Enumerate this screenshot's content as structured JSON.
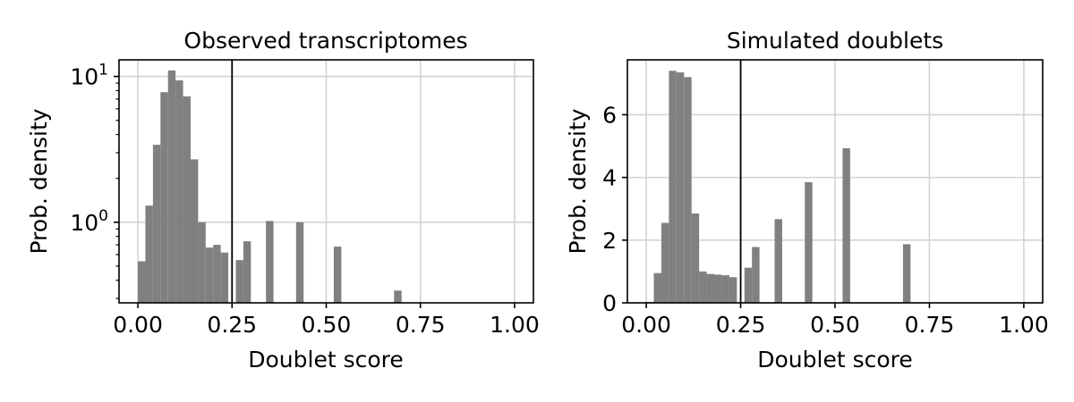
{
  "chart_data": [
    {
      "type": "bar",
      "title": "Observed transcriptomes",
      "xlabel": "Doublet score",
      "ylabel": "Prob. density",
      "xlim": [
        -0.05,
        1.05
      ],
      "yscale": "log",
      "ylim": [
        0.28,
        13
      ],
      "grid": true,
      "bar_color": "#808080",
      "threshold": 0.25,
      "xticks": [
        0.0,
        0.25,
        0.5,
        0.75,
        1.0
      ],
      "xtick_labels": [
        "0.00",
        "0.25",
        "0.50",
        "0.75",
        "1.00"
      ],
      "yticks": [
        {
          "value": 1,
          "base": "10",
          "exp": "0"
        },
        {
          "value": 10,
          "base": "10",
          "exp": "1"
        }
      ],
      "bin_width": 0.02,
      "bins_left": [
        0.0,
        0.02,
        0.04,
        0.06,
        0.08,
        0.1,
        0.12,
        0.14,
        0.16,
        0.18,
        0.2,
        0.22,
        0.26,
        0.28,
        0.34,
        0.42,
        0.52,
        0.68
      ],
      "values": [
        0.54,
        1.3,
        3.4,
        7.8,
        11.0,
        9.4,
        7.3,
        2.7,
        1.0,
        0.67,
        0.7,
        0.62,
        0.55,
        0.74,
        1.02,
        1.0,
        0.68,
        0.34
      ]
    },
    {
      "type": "bar",
      "title": "Simulated doublets",
      "xlabel": "Doublet score",
      "ylabel": "Prob. density",
      "xlim": [
        -0.05,
        1.05
      ],
      "ylim": [
        0,
        7.75
      ],
      "grid": true,
      "bar_color": "#808080",
      "threshold": 0.25,
      "xticks": [
        0.0,
        0.25,
        0.5,
        0.75,
        1.0
      ],
      "xtick_labels": [
        "0.00",
        "0.25",
        "0.50",
        "0.75",
        "1.00"
      ],
      "yticks": [
        {
          "value": 0,
          "label": "0"
        },
        {
          "value": 2,
          "label": "2"
        },
        {
          "value": 4,
          "label": "4"
        },
        {
          "value": 6,
          "label": "6"
        }
      ],
      "bin_width": 0.02,
      "bins_left": [
        0.0,
        0.02,
        0.04,
        0.06,
        0.08,
        0.1,
        0.12,
        0.14,
        0.16,
        0.18,
        0.2,
        0.22,
        0.26,
        0.28,
        0.34,
        0.42,
        0.52,
        0.68
      ],
      "values": [
        0.03,
        0.95,
        2.55,
        7.4,
        7.35,
        7.2,
        2.85,
        1.0,
        0.92,
        0.9,
        0.88,
        0.82,
        1.12,
        1.78,
        2.67,
        3.85,
        4.93,
        1.87
      ]
    }
  ]
}
